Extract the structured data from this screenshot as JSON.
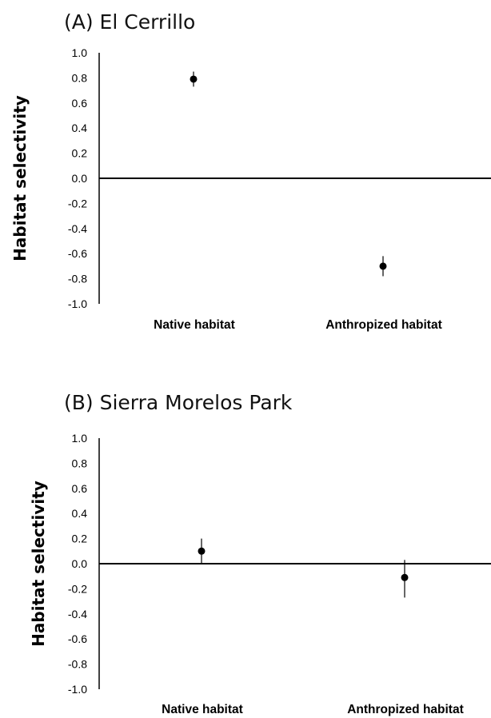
{
  "chart_data": [
    {
      "type": "scatter",
      "title": "(A) El Cerrillo",
      "ylabel": "Habitat selectivity",
      "xlabel": "",
      "categories": [
        "Native habitat",
        "Anthropized habitat"
      ],
      "values": [
        0.79,
        -0.7
      ],
      "error_low": [
        0.73,
        -0.78
      ],
      "error_high": [
        0.85,
        -0.62
      ],
      "ylim": [
        -1.0,
        1.0
      ],
      "yticks": [
        "1.0",
        "0.8",
        "0.6",
        "0.4",
        "0.2",
        "0.0",
        "-0.2",
        "-0.4",
        "-0.6",
        "-0.8",
        "-1.0"
      ],
      "zero_line": true,
      "grid": false
    },
    {
      "type": "scatter",
      "title": "(B) Sierra Morelos Park",
      "ylabel": "Habitat selectivity",
      "xlabel": "",
      "categories": [
        "Native habitat",
        "Anthropized habitat"
      ],
      "values": [
        0.1,
        -0.11
      ],
      "error_low": [
        0.0,
        -0.27
      ],
      "error_high": [
        0.2,
        0.03
      ],
      "ylim": [
        -1.0,
        1.0
      ],
      "yticks": [
        "1.0",
        "0.8",
        "0.6",
        "0.4",
        "0.2",
        "0.0",
        "-0.2",
        "-0.4",
        "-0.6",
        "-0.8",
        "-1.0"
      ],
      "zero_line": true,
      "grid": false
    }
  ]
}
